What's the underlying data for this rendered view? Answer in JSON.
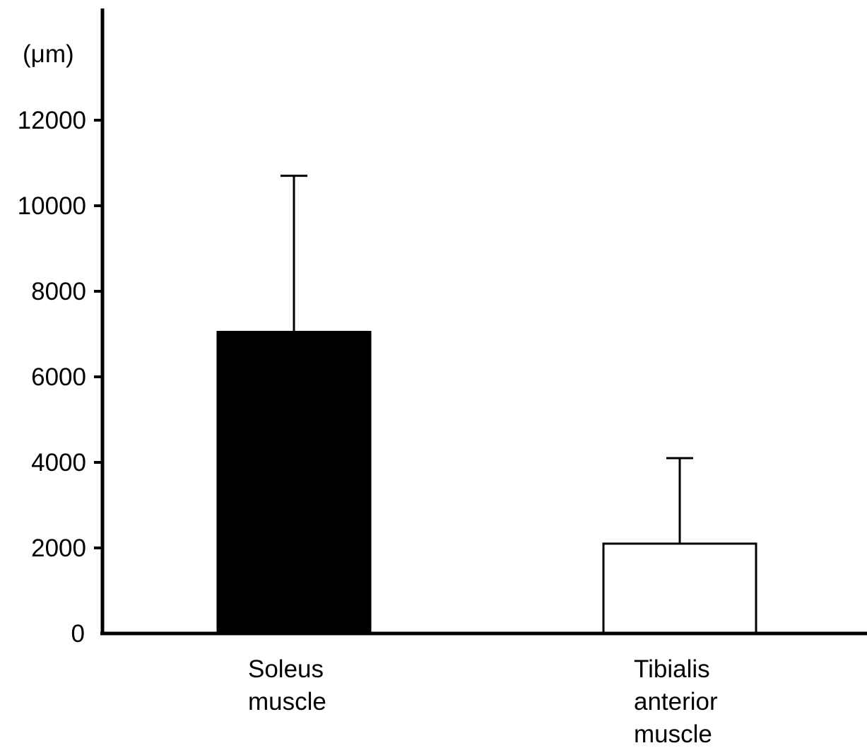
{
  "chart_data": {
    "type": "bar",
    "ylabel": "(μm)",
    "xlabel": "",
    "ylim": [
      0,
      12000
    ],
    "yticks": [
      0,
      2000,
      4000,
      6000,
      8000,
      10000,
      12000
    ],
    "categories": [
      [
        "Soleus",
        "muscle"
      ],
      [
        "Tibialis",
        "anterior",
        "muscle"
      ]
    ],
    "values": [
      7050,
      2100
    ],
    "errors": [
      3650,
      2000
    ],
    "bar_fills": [
      "#000000",
      "#ffffff"
    ],
    "grid": false,
    "legend": "none"
  }
}
